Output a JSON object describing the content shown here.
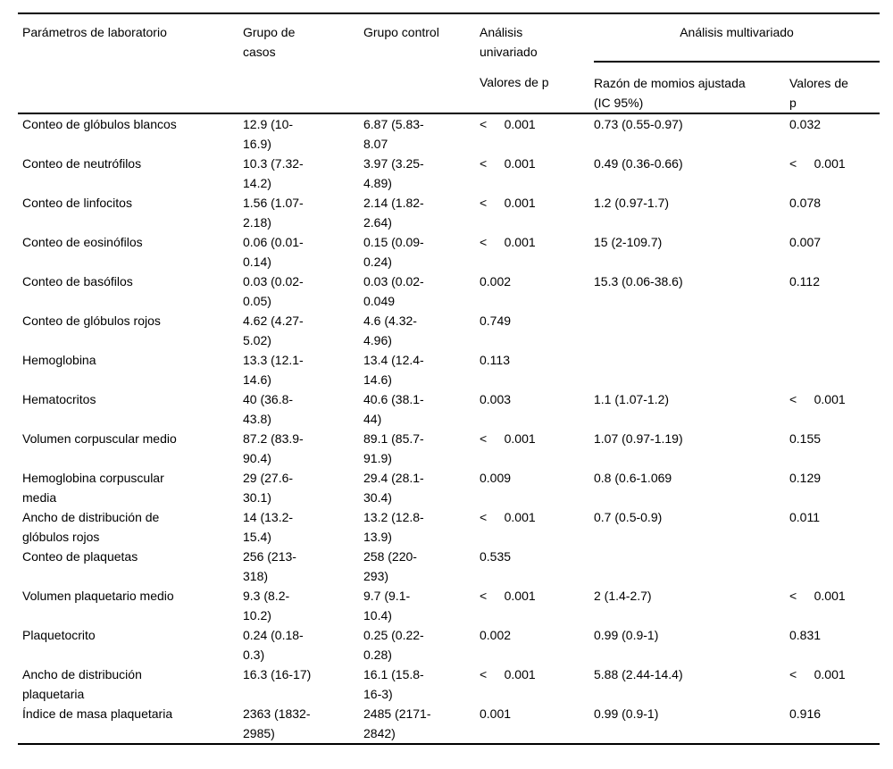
{
  "table": {
    "columns": {
      "parametros": "Parámetros de laboratorio",
      "grupo_casos": "Grupo de\ncasos",
      "grupo_control": "Grupo control",
      "analisis_univariado": "Análisis\nunivariado",
      "analisis_multivariado": "Análisis multivariado",
      "univariado_valores_p": "Valores de p",
      "razon_momios_ajustada": "Razón de momios ajustada\n(IC 95%)",
      "multivariado_valores_p": "Valores de\np"
    },
    "rows": [
      {
        "param": "Conteo de glóbulos blancos",
        "casos": "12.9 (10-\n16.9)",
        "control": "6.87 (5.83-\n8.07",
        "p_uni": "<     0.001",
        "rmm": "0.73 (0.55-0.97)",
        "p_multi": "0.032"
      },
      {
        "param": "Conteo de neutrófilos",
        "casos": "10.3 (7.32-\n14.2)",
        "control": "3.97 (3.25-\n4.89)",
        "p_uni": "<     0.001",
        "rmm": "0.49 (0.36-0.66)",
        "p_multi": "<     0.001"
      },
      {
        "param": "Conteo de linfocitos",
        "casos": "1.56 (1.07-\n2.18)",
        "control": "2.14 (1.82-\n2.64)",
        "p_uni": "<     0.001",
        "rmm": "1.2 (0.97-1.7)",
        "p_multi": "0.078"
      },
      {
        "param": "Conteo de eosinófilos",
        "casos": "0.06 (0.01-\n0.14)",
        "control": "0.15 (0.09-\n0.24)",
        "p_uni": "<     0.001",
        "rmm": "15 (2-109.7)",
        "p_multi": "0.007"
      },
      {
        "param": "Conteo de basófilos",
        "casos": "0.03 (0.02-\n0.05)",
        "control": "0.03 (0.02-\n0.049",
        "p_uni": "0.002",
        "rmm": "15.3 (0.06-38.6)",
        "p_multi": "0.112"
      },
      {
        "param": "Conteo de glóbulos rojos",
        "casos": "4.62 (4.27-\n5.02)",
        "control": "4.6 (4.32-\n4.96)",
        "p_uni": "0.749",
        "rmm": "",
        "p_multi": ""
      },
      {
        "param": "Hemoglobina",
        "casos": "13.3 (12.1-\n14.6)",
        "control": "13.4 (12.4-\n14.6)",
        "p_uni": "0.113",
        "rmm": "",
        "p_multi": ""
      },
      {
        "param": "Hematocritos",
        "casos": "40 (36.8-\n43.8)",
        "control": "40.6 (38.1-\n44)",
        "p_uni": "0.003",
        "rmm": "1.1 (1.07-1.2)",
        "p_multi": "<     0.001"
      },
      {
        "param": "Volumen corpuscular medio",
        "casos": "87.2 (83.9-\n90.4)",
        "control": "89.1 (85.7-\n91.9)",
        "p_uni": "<     0.001",
        "rmm": "1.07 (0.97-1.19)",
        "p_multi": "0.155"
      },
      {
        "param": "Hemoglobina corpuscular\nmedia",
        "casos": "29 (27.6-\n30.1)",
        "control": "29.4 (28.1-\n30.4)",
        "p_uni": "0.009",
        "rmm": "0.8 (0.6-1.069",
        "p_multi": "0.129"
      },
      {
        "param": "Ancho de distribución de\nglóbulos rojos",
        "casos": "14 (13.2-\n15.4)",
        "control": "13.2 (12.8-\n13.9)",
        "p_uni": "<     0.001",
        "rmm": "0.7 (0.5-0.9)",
        "p_multi": "0.011"
      },
      {
        "param": "Conteo de plaquetas",
        "casos": "256 (213-\n318)",
        "control": "258 (220-\n293)",
        "p_uni": "0.535",
        "rmm": "",
        "p_multi": ""
      },
      {
        "param": "Volumen plaquetario medio",
        "casos": "9.3 (8.2-\n10.2)",
        "control": "9.7 (9.1-\n10.4)",
        "p_uni": "<     0.001",
        "rmm": "2 (1.4-2.7)",
        "p_multi": "<     0.001"
      },
      {
        "param": "Plaquetocrito",
        "casos": "0.24 (0.18-\n0.3)",
        "control": "0.25 (0.22-\n0.28)",
        "p_uni": "0.002",
        "rmm": "0.99 (0.9-1)",
        "p_multi": "0.831"
      },
      {
        "param": "Ancho de distribución\nplaquetaria",
        "casos": "16.3 (16-17)",
        "control": "16.1 (15.8-\n16-3)",
        "p_uni": "<     0.001",
        "rmm": "5.88 (2.44-14.4)",
        "p_multi": "<     0.001"
      },
      {
        "param": "Índice de masa plaquetaria",
        "casos": "2363 (1832-\n2985)",
        "control": "2485 (2171-\n2842)",
        "p_uni": "0.001",
        "rmm": "0.99 (0.9-1)",
        "p_multi": "0.916"
      }
    ]
  }
}
